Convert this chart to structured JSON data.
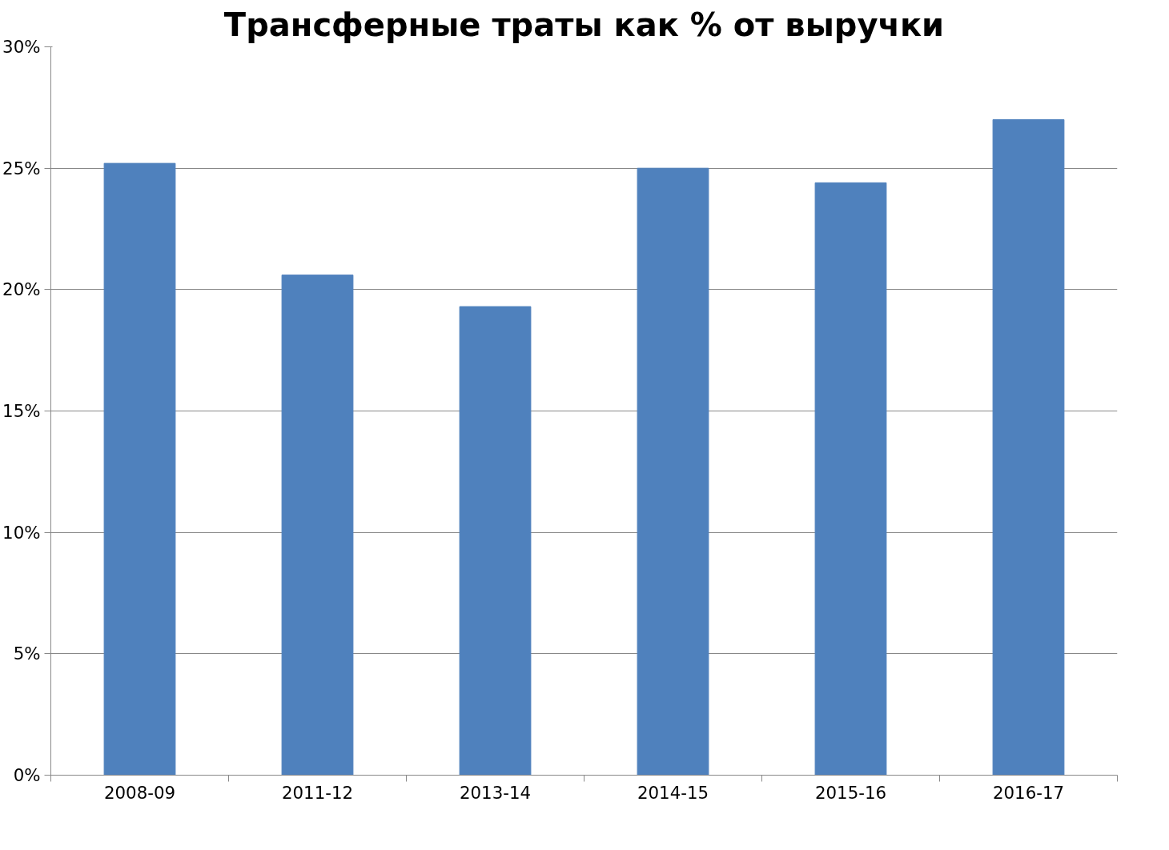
{
  "chart_data": {
    "type": "bar",
    "title": "Трансферные траты как % от выручки",
    "categories": [
      "2008-09",
      "2011-12",
      "2013-14",
      "2014-15",
      "2015-16",
      "2016-17"
    ],
    "values": [
      25.2,
      20.6,
      19.3,
      25.0,
      24.4,
      27.0
    ],
    "color": "#4f81bd",
    "ylim": [
      0,
      30
    ],
    "yticks": [
      {
        "value": 0,
        "label": "0%"
      },
      {
        "value": 5,
        "label": "5%"
      },
      {
        "value": 10,
        "label": "10%"
      },
      {
        "value": 15,
        "label": "15%"
      },
      {
        "value": 20,
        "label": "20%"
      },
      {
        "value": 25,
        "label": "25%"
      },
      {
        "value": 30,
        "label": "30%"
      }
    ],
    "grid": "y"
  }
}
